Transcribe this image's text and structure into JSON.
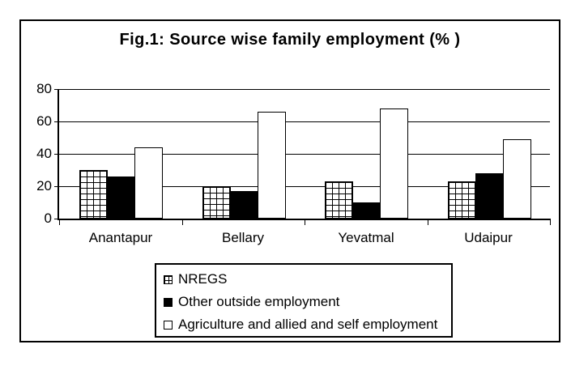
{
  "chart_data": {
    "type": "bar",
    "title": "Fig.1: Source wise family employment (% )",
    "categories": [
      "Anantapur",
      "Bellary",
      "Yevatmal",
      "Udaipur"
    ],
    "series": [
      {
        "name": "NREGS",
        "fill": "checkered",
        "values": [
          30,
          20,
          23,
          23
        ]
      },
      {
        "name": "Other outside employment",
        "fill": "black",
        "values": [
          26,
          17,
          10,
          28
        ]
      },
      {
        "name": "Agriculture and allied and self employment",
        "fill": "white",
        "values": [
          44,
          66,
          68,
          49
        ]
      }
    ],
    "xlabel": "",
    "ylabel": "",
    "ylim": [
      0,
      80
    ],
    "yticks": [
      0,
      20,
      40,
      60,
      80
    ],
    "grid": true,
    "legend_position": "bottom",
    "colors": {
      "foreground": "#000000",
      "background": "#ffffff"
    }
  }
}
